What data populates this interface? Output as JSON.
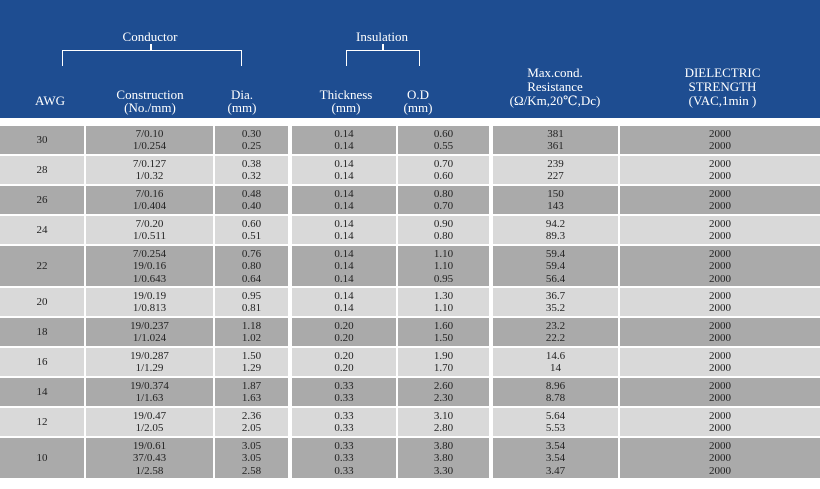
{
  "header": {
    "group_conductor": "Conductor",
    "group_insulation": "Insulation",
    "col_awg": "AWG",
    "col_construction_1": "Construction",
    "col_construction_2": "(No./mm)",
    "col_dia_1": "Dia.",
    "col_dia_2": "(mm)",
    "col_thickness_1": "Thickness",
    "col_thickness_2": "(mm)",
    "col_od_1": "O.D",
    "col_od_2": "(mm)",
    "col_resistance_1": "Max.cond.",
    "col_resistance_2": "Resistance",
    "col_resistance_3": "(Ω/Km,20℃,Dc)",
    "col_dielectric_1": "DIELECTRIC",
    "col_dielectric_2": "STRENGTH",
    "col_dielectric_3": "(VAC,1min )"
  },
  "colors": {
    "header_bg": "#1e4d91",
    "row_dark": "#aaaaaa",
    "row_light": "#d9d9d9"
  },
  "rows": [
    {
      "awg": "30",
      "construction": [
        "7/0.10",
        "1/0.254"
      ],
      "dia": [
        "0.30",
        "0.25"
      ],
      "thickness": [
        "0.14",
        "0.14"
      ],
      "od": [
        "0.60",
        "0.55"
      ],
      "resistance": [
        "381",
        "361"
      ],
      "dielectric": [
        "2000",
        "2000"
      ]
    },
    {
      "awg": "28",
      "construction": [
        "7/0.127",
        "1/0.32"
      ],
      "dia": [
        "0.38",
        "0.32"
      ],
      "thickness": [
        "0.14",
        "0.14"
      ],
      "od": [
        "0.70",
        "0.60"
      ],
      "resistance": [
        "239",
        "227"
      ],
      "dielectric": [
        "2000",
        "2000"
      ]
    },
    {
      "awg": "26",
      "construction": [
        "7/0.16",
        "1/0.404"
      ],
      "dia": [
        "0.48",
        "0.40"
      ],
      "thickness": [
        "0.14",
        "0.14"
      ],
      "od": [
        "0.80",
        "0.70"
      ],
      "resistance": [
        "150",
        "143"
      ],
      "dielectric": [
        "2000",
        "2000"
      ]
    },
    {
      "awg": "24",
      "construction": [
        "7/0.20",
        "1/0.511"
      ],
      "dia": [
        "0.60",
        "0.51"
      ],
      "thickness": [
        "0.14",
        "0.14"
      ],
      "od": [
        "0.90",
        "0.80"
      ],
      "resistance": [
        "94.2",
        "89.3"
      ],
      "dielectric": [
        "2000",
        "2000"
      ]
    },
    {
      "awg": "22",
      "construction": [
        "7/0.254",
        "19/0.16",
        "1/0.643"
      ],
      "dia": [
        "0.76",
        "0.80",
        "0.64"
      ],
      "thickness": [
        "0.14",
        "0.14",
        "0.14"
      ],
      "od": [
        "1.10",
        "1.10",
        "0.95"
      ],
      "resistance": [
        "59.4",
        "59.4",
        "56.4"
      ],
      "dielectric": [
        "2000",
        "2000",
        "2000"
      ]
    },
    {
      "awg": "20",
      "construction": [
        "19/0.19",
        "1/0.813"
      ],
      "dia": [
        "0.95",
        "0.81"
      ],
      "thickness": [
        "0.14",
        "0.14"
      ],
      "od": [
        "1.30",
        "1.10"
      ],
      "resistance": [
        "36.7",
        "35.2"
      ],
      "dielectric": [
        "2000",
        "2000"
      ]
    },
    {
      "awg": "18",
      "construction": [
        "19/0.237",
        "1/1.024"
      ],
      "dia": [
        "1.18",
        "1.02"
      ],
      "thickness": [
        "0.20",
        "0.20"
      ],
      "od": [
        "1.60",
        "1.50"
      ],
      "resistance": [
        "23.2",
        "22.2"
      ],
      "dielectric": [
        "2000",
        "2000"
      ]
    },
    {
      "awg": "16",
      "construction": [
        "19/0.287",
        "1/1.29"
      ],
      "dia": [
        "1.50",
        "1.29"
      ],
      "thickness": [
        "0.20",
        "0.20"
      ],
      "od": [
        "1.90",
        "1.70"
      ],
      "resistance": [
        "14.6",
        "14"
      ],
      "dielectric": [
        "2000",
        "2000"
      ]
    },
    {
      "awg": "14",
      "construction": [
        "19/0.374",
        "1/1.63"
      ],
      "dia": [
        "1.87",
        "1.63"
      ],
      "thickness": [
        "0.33",
        "0.33"
      ],
      "od": [
        "2.60",
        "2.30"
      ],
      "resistance": [
        "8.96",
        "8.78"
      ],
      "dielectric": [
        "2000",
        "2000"
      ]
    },
    {
      "awg": "12",
      "construction": [
        "19/0.47",
        "1/2.05"
      ],
      "dia": [
        "2.36",
        "2.05"
      ],
      "thickness": [
        "0.33",
        "0.33"
      ],
      "od": [
        "3.10",
        "2.80"
      ],
      "resistance": [
        "5.64",
        "5.53"
      ],
      "dielectric": [
        "2000",
        "2000"
      ]
    },
    {
      "awg": "10",
      "construction": [
        "19/0.61",
        "37/0.43",
        "1/2.58"
      ],
      "dia": [
        "3.05",
        "3.05",
        "2.58"
      ],
      "thickness": [
        "0.33",
        "0.33",
        "0.33"
      ],
      "od": [
        "3.80",
        "3.80",
        "3.30"
      ],
      "resistance": [
        "3.54",
        "3.54",
        "3.47"
      ],
      "dielectric": [
        "2000",
        "2000",
        "2000"
      ]
    }
  ]
}
